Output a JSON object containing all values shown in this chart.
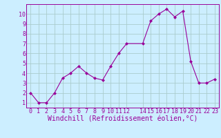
{
  "x": [
    0,
    1,
    2,
    3,
    4,
    5,
    6,
    7,
    8,
    9,
    10,
    11,
    12,
    14,
    15,
    16,
    17,
    18,
    19,
    20,
    21,
    22,
    23
  ],
  "y": [
    2,
    1,
    1,
    2,
    3.5,
    4,
    4.7,
    4,
    3.5,
    3.3,
    4.7,
    6,
    7,
    7,
    9.3,
    10,
    10.5,
    9.7,
    10.3,
    5.2,
    3,
    3,
    3.4
  ],
  "line_color": "#990099",
  "marker": "D",
  "marker_size": 2,
  "bg_color": "#cceeff",
  "grid_color": "#aacccc",
  "xlabel": "Windchill (Refroidissement éolien,°C)",
  "ylim": [
    0.5,
    11
  ],
  "xlim": [
    -0.5,
    23.5
  ],
  "yticks": [
    1,
    2,
    3,
    4,
    5,
    6,
    7,
    8,
    9,
    10
  ],
  "xtick_labels": [
    "0",
    "1",
    "2",
    "3",
    "4",
    "5",
    "6",
    "7",
    "8",
    "9",
    "10",
    "11",
    "12",
    "14",
    "15",
    "16",
    "17",
    "18",
    "19",
    "20",
    "21",
    "22",
    "23"
  ],
  "xtick_pos": [
    0,
    1,
    2,
    3,
    4,
    5,
    6,
    7,
    8,
    9,
    10,
    11,
    12,
    14,
    15,
    16,
    17,
    18,
    19,
    20,
    21,
    22,
    23
  ],
  "tick_fontsize": 6,
  "xlabel_fontsize": 7
}
